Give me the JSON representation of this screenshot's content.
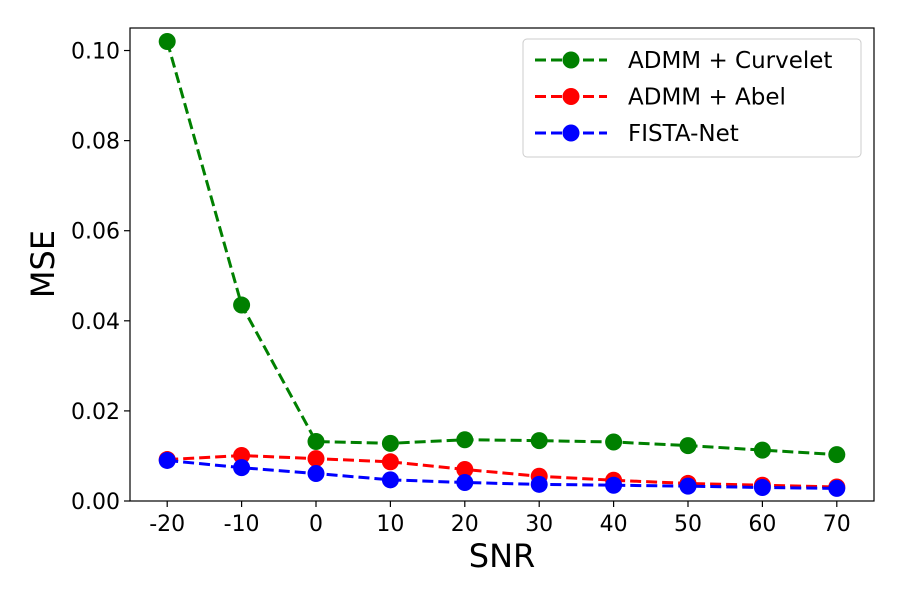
{
  "chart_data": {
    "type": "line",
    "xlabel": "SNR",
    "ylabel": "MSE",
    "x": [
      -20,
      -10,
      0,
      10,
      20,
      30,
      40,
      50,
      60,
      70
    ],
    "x_tick_labels": [
      "-20",
      "-10",
      "0",
      "10",
      "20",
      "30",
      "40",
      "50",
      "60",
      "70"
    ],
    "y_tick_labels": [
      "0.00",
      "0.02",
      "0.04",
      "0.06",
      "0.08",
      "0.10"
    ],
    "xlim": [
      -25,
      75
    ],
    "ylim": [
      0,
      0.105
    ],
    "grid": false,
    "legend_position": "top-right",
    "series": [
      {
        "name": "ADMM + Curvelet",
        "color": "#008000",
        "line_style": "dashed",
        "marker": "circle",
        "values": [
          0.102,
          0.0435,
          0.0132,
          0.0128,
          0.0136,
          0.0134,
          0.0131,
          0.0123,
          0.0113,
          0.0103
        ]
      },
      {
        "name": "ADMM + Abel",
        "color": "#ff0000",
        "line_style": "dashed",
        "marker": "circle",
        "values": [
          0.0092,
          0.0101,
          0.0094,
          0.0087,
          0.007,
          0.0055,
          0.0046,
          0.0039,
          0.0035,
          0.0031
        ]
      },
      {
        "name": "FISTA-Net",
        "color": "#0000ff",
        "line_style": "dashed",
        "marker": "circle",
        "values": [
          0.009,
          0.0074,
          0.0061,
          0.0047,
          0.0041,
          0.0037,
          0.0035,
          0.0033,
          0.003,
          0.0028
        ]
      }
    ]
  }
}
